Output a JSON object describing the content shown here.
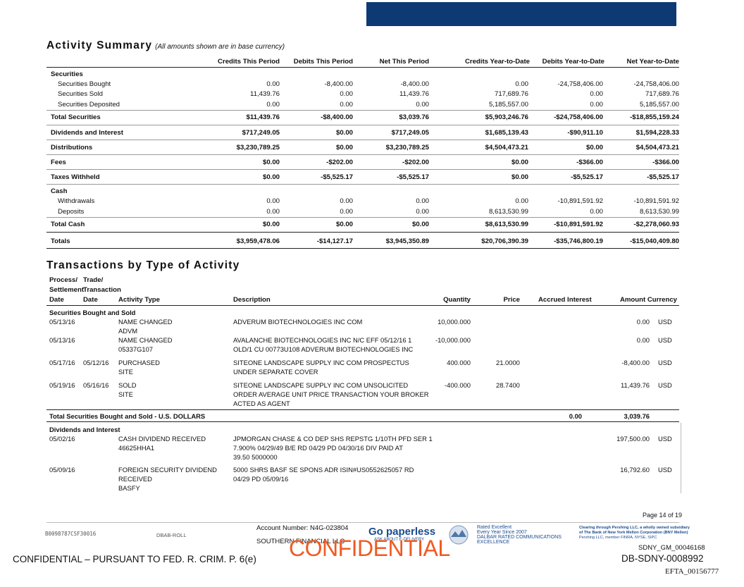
{
  "header_bar_color": "#0e3a73",
  "activity": {
    "title": "Activity Summary",
    "note": "(All amounts shown are in base currency)",
    "columns": [
      "Credits This Period",
      "Debits This Period",
      "Net This Period",
      "Credits Year-to-Date",
      "Debits Year-to-Date",
      "Net Year-to-Date"
    ],
    "securities_label": "Securities",
    "securities_rows": [
      {
        "label": "Securities Bought",
        "v": [
          "0.00",
          "-8,400.00",
          "-8,400.00",
          "0.00",
          "-24,758,406.00",
          "-24,758,406.00"
        ]
      },
      {
        "label": "Securities Sold",
        "v": [
          "11,439.76",
          "0.00",
          "11,439.76",
          "717,689.76",
          "0.00",
          "717,689.76"
        ]
      },
      {
        "label": "Securities Deposited",
        "v": [
          "0.00",
          "0.00",
          "0.00",
          "5,185,557.00",
          "0.00",
          "5,185,557.00"
        ]
      }
    ],
    "total_securities": {
      "label": "Total Securities",
      "v": [
        "$11,439.76",
        "-$8,400.00",
        "$3,039.76",
        "$5,903,246.76",
        "-$24,758,406.00",
        "-$18,855,159.24"
      ]
    },
    "dividends": {
      "label": "Dividends and Interest",
      "v": [
        "$717,249.05",
        "$0.00",
        "$717,249.05",
        "$1,685,139.43",
        "-$90,911.10",
        "$1,594,228.33"
      ]
    },
    "distributions": {
      "label": "Distributions",
      "v": [
        "$3,230,789.25",
        "$0.00",
        "$3,230,789.25",
        "$4,504,473.21",
        "$0.00",
        "$4,504,473.21"
      ]
    },
    "fees": {
      "label": "Fees",
      "v": [
        "$0.00",
        "-$202.00",
        "-$202.00",
        "$0.00",
        "-$366.00",
        "-$366.00"
      ]
    },
    "taxes": {
      "label": "Taxes Withheld",
      "v": [
        "$0.00",
        "-$5,525.17",
        "-$5,525.17",
        "$0.00",
        "-$5,525.17",
        "-$5,525.17"
      ]
    },
    "cash_label": "Cash",
    "cash_rows": [
      {
        "label": "Withdrawals",
        "v": [
          "0.00",
          "0.00",
          "0.00",
          "0.00",
          "-10,891,591.92",
          "-10,891,591.92"
        ]
      },
      {
        "label": "Deposits",
        "v": [
          "0.00",
          "0.00",
          "0.00",
          "8,613,530.99",
          "0.00",
          "8,613,530.99"
        ]
      }
    ],
    "total_cash": {
      "label": "Total Cash",
      "v": [
        "$0.00",
        "$0.00",
        "$0.00",
        "$8,613,530.99",
        "-$10,891,591.92",
        "-$2,278,060.93"
      ]
    },
    "totals": {
      "label": "Totals",
      "v": [
        "$3,959,478.06",
        "-$14,127.17",
        "$3,945,350.89",
        "$20,706,390.39",
        "-$35,746,800.19",
        "-$15,040,409.80"
      ]
    }
  },
  "transactions": {
    "title": "Transactions by Type of Activity",
    "headers": {
      "process_l1": "Process/",
      "process_l2": "Settlement",
      "process_l3": "Date",
      "trade_l1": "Trade/",
      "trade_l2": "Transaction",
      "trade_l3": "Date",
      "activity_type": "Activity Type",
      "description": "Description",
      "quantity": "Quantity",
      "price": "Price",
      "accrued": "Accrued Interest",
      "amount": "Amount Currency"
    },
    "sec_group": "Securities Bought and Sold",
    "sec_rows": [
      {
        "sdate": "05/13/16",
        "tdate": "",
        "type": [
          "NAME CHANGED",
          "ADVM"
        ],
        "desc": [
          "ADVERUM BIOTECHNOLOGIES INC COM"
        ],
        "qty": "10,000.000",
        "price": "",
        "amount": "0.00",
        "cur": "USD"
      },
      {
        "sdate": "05/13/16",
        "tdate": "",
        "type": [
          "NAME CHANGED",
          "05337G107"
        ],
        "desc": [
          "AVALANCHE BIOTECHNOLOGIES INC N/C EFF 05/12/16 1",
          "OLD/1 CU 00773U108 ADVERUM BIOTECHNOLOGIES INC"
        ],
        "qty": "-10,000.000",
        "price": "",
        "amount": "0.00",
        "cur": "USD"
      },
      {
        "sdate": "05/17/16",
        "tdate": "05/12/16",
        "type": [
          "PURCHASED",
          "SITE"
        ],
        "desc": [
          "SITEONE LANDSCAPE SUPPLY INC COM PROSPECTUS",
          "UNDER SEPARATE COVER"
        ],
        "qty": "400.000",
        "price": "21.0000",
        "amount": "-8,400.00",
        "cur": "USD"
      },
      {
        "sdate": "05/19/16",
        "tdate": "05/16/16",
        "type": [
          "SOLD",
          "SITE"
        ],
        "desc": [
          "SITEONE LANDSCAPE SUPPLY INC COM UNSOLICITED",
          "ORDER AVERAGE UNIT PRICE TRANSACTION YOUR BROKER",
          "ACTED AS AGENT"
        ],
        "qty": "-400.000",
        "price": "28.7400",
        "amount": "11,439.76",
        "cur": "USD"
      }
    ],
    "sec_total": {
      "label": "Total Securities Bought and Sold - U.S. DOLLARS",
      "accrued": "0.00",
      "amount": "3,039.76"
    },
    "div_group": "Dividends and Interest",
    "div_rows": [
      {
        "sdate": "05/02/16",
        "type": [
          "CASH DIVIDEND RECEIVED",
          "46625HHA1"
        ],
        "desc": [
          "JPMORGAN CHASE & CO DEP SHS REPSTG 1/10TH PFD SER 1",
          "7.900% 04/29/49 B/E RD 04/29 PD 04/30/16 DIV PAID AT",
          "39.50 5000000"
        ],
        "amount": "197,500.00",
        "cur": "USD"
      },
      {
        "sdate": "05/09/16",
        "type": [
          "FOREIGN SECURITY DIVIDEND",
          "RECEIVED",
          "BASFY"
        ],
        "desc": [
          "5000 SHRS BASF SE SPONS ADR ISIN#US0552625057 RD",
          "04/29 PD 05/09/16"
        ],
        "amount": "16,792.60",
        "cur": "USD"
      }
    ]
  },
  "footer": {
    "page": "Page 14 of 19",
    "barcode": "B0098787CSF30016",
    "dbab": "DBAB-ROLL",
    "account": "Account Number: N4G-023804",
    "firm": "SOUTHERN FINANCIAL LLC",
    "go_paperless": "Go paperless",
    "go_sub": "ASK ABOUT E-DELIVERY",
    "rated_1": "Rated Excellent",
    "rated_2": "Every Year Since 2007",
    "rated_3": "DALBAR RATED COMMUNICATIONS",
    "rated_4": "EXCELLENCE",
    "clearing_1": "Clearing through Pershing LLC, a wholly owned subsidiary",
    "clearing_2": "of The Bank of New York Mellon Corporation (BNY Mellon)",
    "clearing_3": "Pershing LLC, member FINRA, NYSE, SIPC",
    "confidential_left": "CONFIDENTIAL – PURSUANT TO FED. R. CRIM. P. 6(e)",
    "confidential_big": "CONFIDENTIAL",
    "sdny_gm": "SDNY_GM_00046168",
    "db_sdny": "DB-SDNY-0008992",
    "efta": "EFTA_00156777",
    "confidential_color": "#f05a22"
  }
}
